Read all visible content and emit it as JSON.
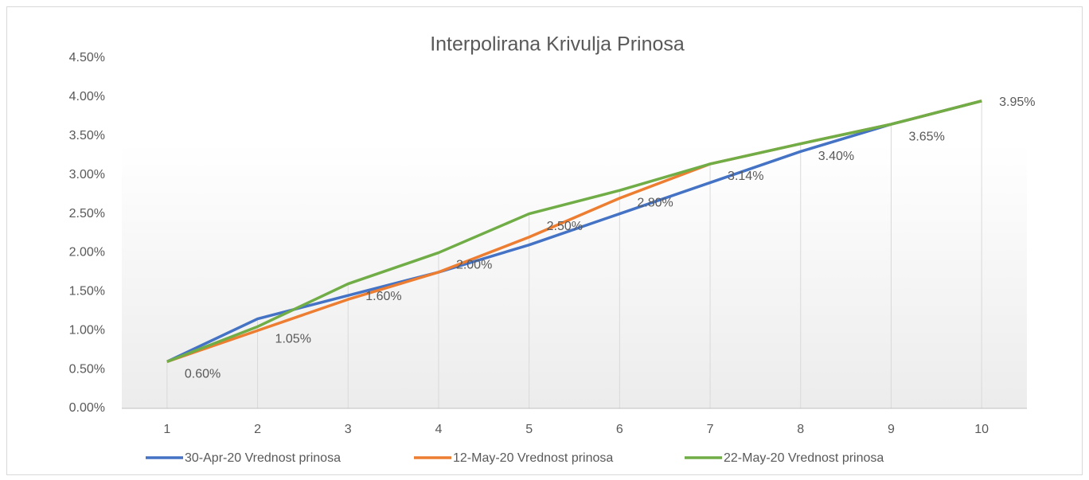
{
  "chart_data": {
    "type": "line",
    "title": "Interpolirana Krivulja Prinosa",
    "categories": [
      1,
      2,
      3,
      4,
      5,
      6,
      7,
      8,
      9,
      10
    ],
    "series": [
      {
        "name": "30-Apr-20 Vrednost prinosa",
        "color": "#4472c4",
        "values": [
          0.6,
          1.15,
          1.45,
          1.75,
          2.1,
          2.5,
          2.9,
          3.3,
          3.65,
          3.95
        ]
      },
      {
        "name": "12-May-20 Vrednost prinosa",
        "color": "#ed7d31",
        "values": [
          0.6,
          1.0,
          1.4,
          1.75,
          2.2,
          2.7,
          3.14,
          3.4,
          3.65,
          3.95
        ]
      },
      {
        "name": "22-May-20 Vrednost prinosa",
        "color": "#70ad47",
        "values": [
          0.6,
          1.05,
          1.6,
          2.0,
          2.5,
          2.8,
          3.14,
          3.4,
          3.65,
          3.95
        ],
        "value_labels": [
          "0.60%",
          "1.05%",
          "1.60%",
          "2.00%",
          "2.50%",
          "2.80%",
          "3.14%",
          "3.40%",
          "3.65%",
          "3.95%"
        ]
      }
    ],
    "ylim": [
      0,
      4.5
    ],
    "yticks": [
      {
        "value": 0,
        "label": "0.00%"
      },
      {
        "value": 0.5,
        "label": "0.50%"
      },
      {
        "value": 1,
        "label": "1.00%"
      },
      {
        "value": 1.5,
        "label": "1.50%"
      },
      {
        "value": 2,
        "label": "2.00%"
      },
      {
        "value": 2.5,
        "label": "2.50%"
      },
      {
        "value": 3,
        "label": "3.00%"
      },
      {
        "value": 3.5,
        "label": "3.50%"
      },
      {
        "value": 4,
        "label": "4.00%"
      },
      {
        "value": 4.5,
        "label": "4.50%"
      }
    ],
    "legend": "bottom"
  }
}
